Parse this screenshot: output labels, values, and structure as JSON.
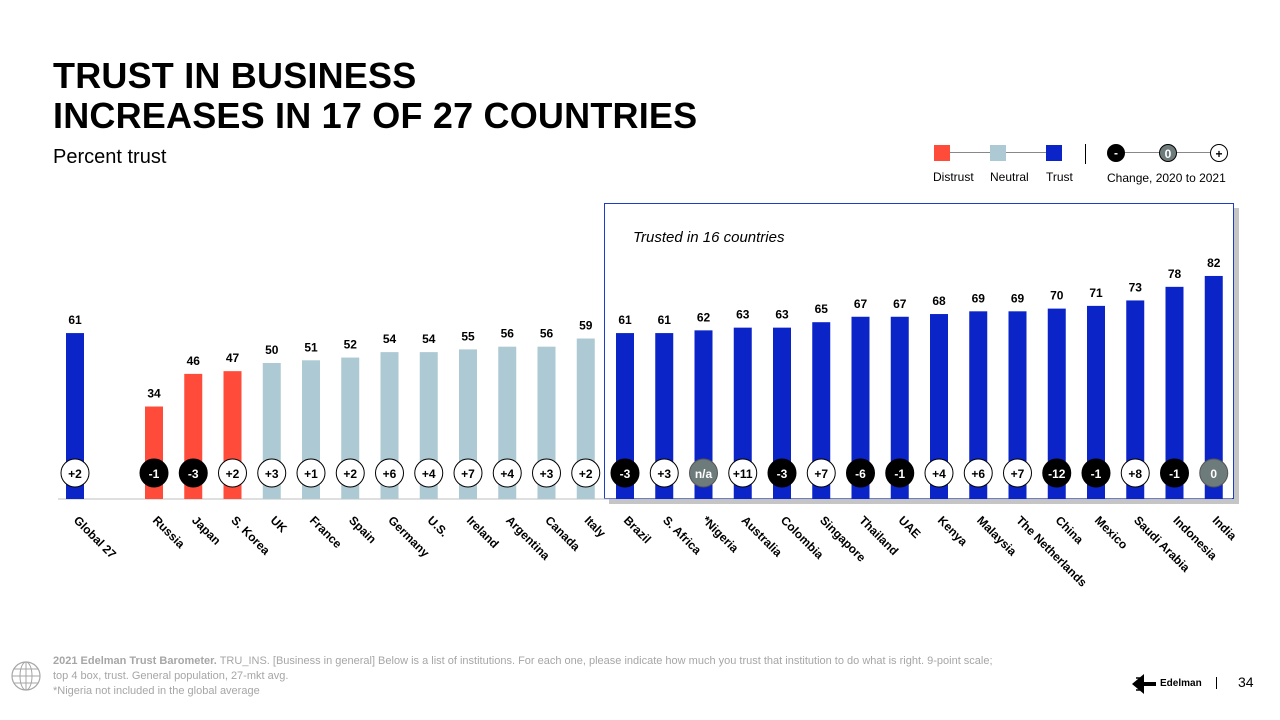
{
  "title_line1": "TRUST IN BUSINESS",
  "title_line2": "INCREASES IN 17 OF 27 COUNTRIES",
  "subtitle": "Percent trust",
  "legend": {
    "distrust": "Distrust",
    "neutral": "Neutral",
    "trust": "Trust",
    "change_label": "Change, 2020 to 2021",
    "minus": "-",
    "zero": "0",
    "plus": "+"
  },
  "colors": {
    "distrust": "#ff4b3a",
    "neutral": "#adc9d3",
    "trust": "#0b24c8",
    "change_negative": "#000000",
    "change_zero": "#6e7b7b",
    "change_positive": "#ffffff"
  },
  "box_label": "Trusted in 16 countries",
  "chart_data": {
    "type": "bar",
    "ylim": [
      0,
      100
    ],
    "categories": [
      "Global 27",
      "Russia",
      "Japan",
      "S. Korea",
      "UK",
      "France",
      "Spain",
      "Germany",
      "U.S.",
      "Ireland",
      "Argentina",
      "Canada",
      "Italy",
      "Brazil",
      "S. Africa",
      "*Nigeria",
      "Australia",
      "Colombia",
      "Singapore",
      "Thailand",
      "UAE",
      "Kenya",
      "Malaysia",
      "The Netherlands",
      "China",
      "Mexico",
      "Saudi Arabia",
      "Indonesia",
      "India"
    ],
    "values": [
      61,
      34,
      46,
      47,
      50,
      51,
      52,
      54,
      54,
      55,
      56,
      56,
      59,
      61,
      61,
      62,
      63,
      63,
      65,
      67,
      67,
      68,
      69,
      69,
      70,
      71,
      73,
      78,
      82
    ],
    "levels": [
      "trust",
      "distrust",
      "distrust",
      "distrust",
      "neutral",
      "neutral",
      "neutral",
      "neutral",
      "neutral",
      "neutral",
      "neutral",
      "neutral",
      "neutral",
      "trust",
      "trust",
      "trust",
      "trust",
      "trust",
      "trust",
      "trust",
      "trust",
      "trust",
      "trust",
      "trust",
      "trust",
      "trust",
      "trust",
      "trust",
      "trust"
    ],
    "changes": [
      "+2",
      "-1",
      "-3",
      "+2",
      "+3",
      "+1",
      "+2",
      "+6",
      "+4",
      "+7",
      "+4",
      "+3",
      "+2",
      "-3",
      "+3",
      "n/a",
      "+11",
      "-3",
      "+7",
      "-6",
      "-1",
      "+4",
      "+6",
      "+7",
      "-12",
      "-1",
      "+8",
      "-1",
      "0"
    ]
  },
  "footer": {
    "source_bold": "2021 Edelman Trust Barometer.",
    "source_text": " TRU_INS. [Business in general] Below is a list of institutions. For each one, please indicate how much you trust that institution to do what is right. 9-point scale;",
    "line2": "top 4 box, trust. General population, 27-mkt avg.",
    "line3": "*Nigeria not included in the global average"
  },
  "brand": "Edelman",
  "page_number": "34"
}
